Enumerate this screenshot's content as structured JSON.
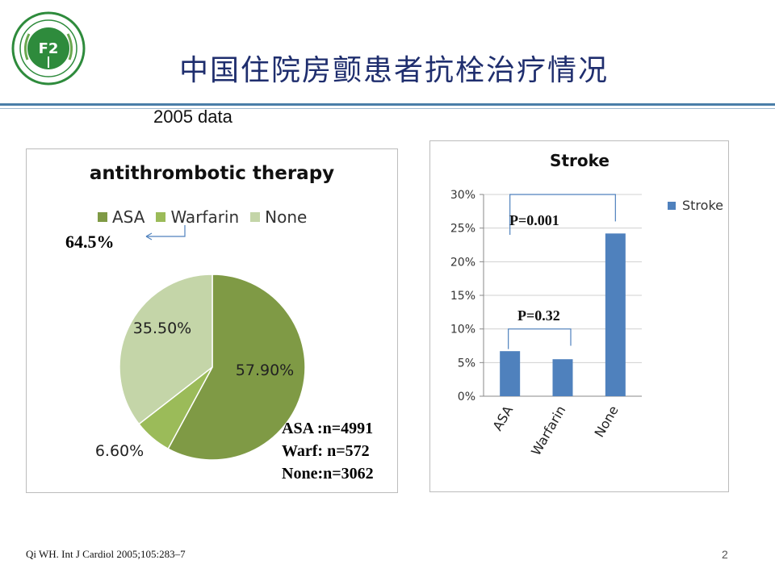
{
  "slide": {
    "title": "中国住院房颤患者抗栓治疗情况",
    "subtitle": "2005 data",
    "citation": "Qi WH. Int J Cardiol 2005;105:283–7",
    "page_number": "2"
  },
  "colors": {
    "asa": "#7f9a45",
    "warfarin": "#9bbb59",
    "none": "#c4d5a8",
    "bar": "#4f81bd",
    "title": "#1f2e6e",
    "rule": "#4a7ea8"
  },
  "icons": {
    "logo": "medical-emblem-icon"
  },
  "chart_data": [
    {
      "type": "pie",
      "title": "antithrombotic therapy",
      "categories": [
        "ASA",
        "Warfarin",
        "None"
      ],
      "values": [
        57.9,
        6.6,
        35.5
      ],
      "data_labels": [
        "57.90%",
        "6.60%",
        "35.50%"
      ],
      "legend_position": "top",
      "annotation": "64.5%",
      "counts": [
        "ASA :n=4991",
        "Warf: n=572",
        "None:n=3062"
      ]
    },
    {
      "type": "bar",
      "title": "Stroke",
      "categories": [
        "ASA",
        "Warfarin",
        "None"
      ],
      "series": [
        {
          "name": "Stroke",
          "values": [
            6.7,
            5.5,
            24.2
          ]
        }
      ],
      "ylim": [
        0,
        30
      ],
      "y_ticks": [
        "0%",
        "5%",
        "10%",
        "15%",
        "20%",
        "25%",
        "30%"
      ],
      "grid": true,
      "legend_position": "right",
      "annotations": [
        "P=0.001",
        "P=0.32"
      ]
    }
  ]
}
